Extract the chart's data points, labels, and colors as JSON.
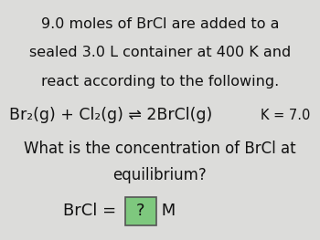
{
  "bg_color": "#dcdcda",
  "line1": "9.0 moles of BrCl are added to a",
  "line2": "sealed 3.0 L container at 400 K and",
  "line3": "react according to the following.",
  "equation": "Br₂(g) + Cl₂(g) ⇌ 2BrCl(g)",
  "keq": "K = 7.0",
  "line4": "What is the concentration of BrCl at",
  "line5": "equilibrium?",
  "brcl_label": "BrCl = ",
  "box_text": "?",
  "m_label": " M",
  "box_color": "#7ec87e",
  "box_edge_color": "#555555",
  "text_color": "#111111",
  "fontsize_main": 11.5,
  "fontsize_eq": 12.5,
  "fontsize_keq": 10.5,
  "fontsize_ans": 13.0
}
